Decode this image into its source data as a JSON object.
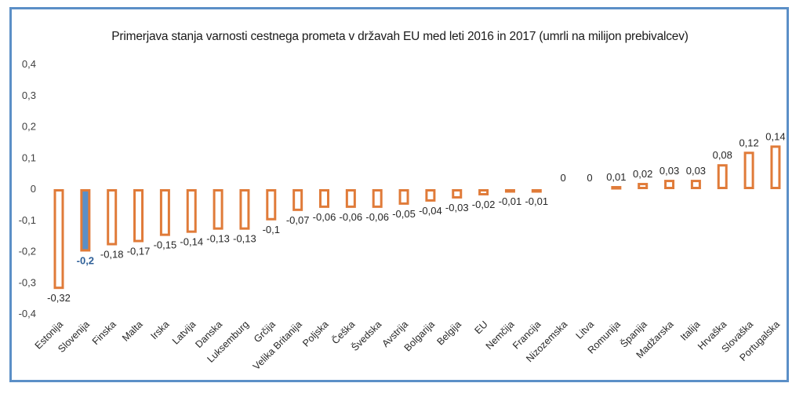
{
  "chart_data": {
    "type": "bar",
    "title": "Primerjava stanja varnosti cestnega prometa v državah EU med leti 2016 in 2017 (umrli na milijon prebivalcev)",
    "xlabel": "",
    "ylabel": "",
    "ylim": [
      -0.4,
      0.4
    ],
    "yticks": [
      0.4,
      0.3,
      0.2,
      0.1,
      0,
      -0.1,
      -0.2,
      -0.3,
      -0.4
    ],
    "ytick_labels": [
      "0,4",
      "0,3",
      "0,2",
      "0,1",
      "0",
      "-0,1",
      "-0,2",
      "-0,3",
      "-0,4"
    ],
    "grid": false,
    "legend": "none",
    "categories": [
      "Estonija",
      "Slovenija",
      "Finska",
      "Malta",
      "Irska",
      "Latvija",
      "Danska",
      "Luksemburg",
      "Grčija",
      "Velika Britanija",
      "Poljska",
      "Češka",
      "Švedska",
      "Avstrija",
      "Bolgarija",
      "Belgija",
      "EU",
      "Nemčija",
      "Francija",
      "Nizozemska",
      "Litva",
      "Romunija",
      "Španija",
      "Madžarska",
      "Italija",
      "Hrvaška",
      "Slovaška",
      "Portugalska"
    ],
    "values": [
      -0.32,
      -0.2,
      -0.18,
      -0.17,
      -0.15,
      -0.14,
      -0.13,
      -0.13,
      -0.1,
      -0.07,
      -0.06,
      -0.06,
      -0.06,
      -0.05,
      -0.04,
      -0.03,
      -0.02,
      -0.01,
      -0.01,
      0,
      0,
      0.01,
      0.02,
      0.03,
      0.03,
      0.08,
      0.12,
      0.14
    ],
    "data_labels": [
      "-0,32",
      "-0,2",
      "-0,18",
      "-0,17",
      "-0,15",
      "-0,14",
      "-0,13",
      "-0,13",
      "-0,1",
      "-0,07",
      "-0,06",
      "-0,06",
      "-0,06",
      "-0,05",
      "-0,04",
      "-0,03",
      "-0,02",
      "-0,01",
      "-0,01",
      "0",
      "0",
      "0,01",
      "0,02",
      "0,03",
      "0,03",
      "0,08",
      "0,12",
      "0,14"
    ],
    "highlight_category": "Slovenija",
    "colors": {
      "bar_outline": "#e07b39",
      "highlight_fill": "#5b8fc7",
      "highlight_label": "#2e5f97",
      "frame": "#5b8fc7"
    }
  }
}
